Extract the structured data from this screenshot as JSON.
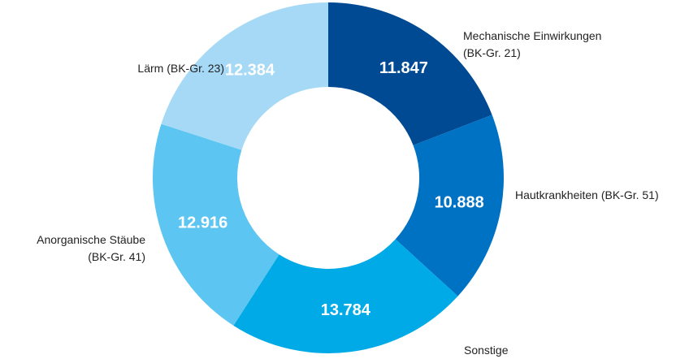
{
  "chart_data": {
    "type": "donut",
    "categories": [
      "Mechanische Einwirkungen\n(BK-Gr. 21)",
      "Hautkrankheiten (BK-Gr. 51)",
      "Sonstige",
      "Anorganische Stäube\n(BK-Gr. 41)",
      "Lärm (BK-Gr. 23)"
    ],
    "values": [
      11847,
      10888,
      13784,
      12916,
      12384
    ],
    "value_labels": [
      "11.847",
      "10.888",
      "13.784",
      "12.916",
      "12.384"
    ],
    "colors": [
      "#004a93",
      "#0072c3",
      "#00aae7",
      "#5cc5f2",
      "#a6d9f6"
    ]
  }
}
